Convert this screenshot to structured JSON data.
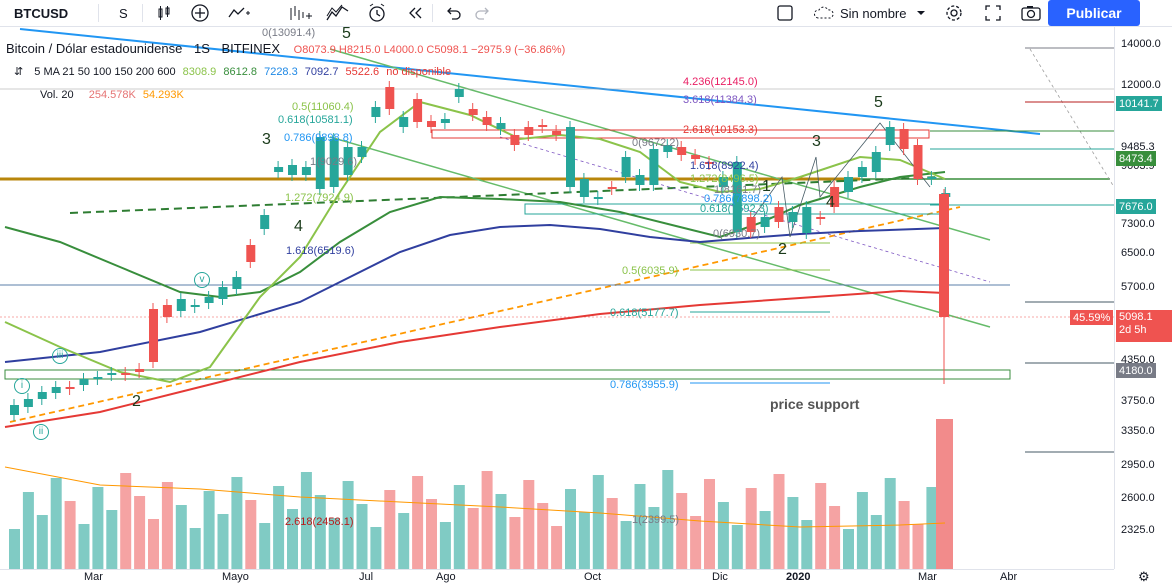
{
  "toolbar": {
    "symbol": "BTCUSD",
    "interval": "S",
    "layout_name": "Sin nombre",
    "publish_label": "Publicar"
  },
  "legend": {
    "title": "Bitcoin / Dólar estadounidense",
    "interval": "1S",
    "exchange": "BITFINEX",
    "ohlc": {
      "o": "O8073.9",
      "h": "H8215.0",
      "l": "L4000.0",
      "c": "C5098.1",
      "change": "−2975.9 (−36.86%)"
    },
    "ma_label": "5 MA 21 50 100 150 200 600",
    "ma_values": [
      {
        "value": "8308.9",
        "color": "#8bc34a"
      },
      {
        "value": "8612.8",
        "color": "#388e3c"
      },
      {
        "value": "7228.3",
        "color": "#1e88e5"
      },
      {
        "value": "7092.7",
        "color": "#303f9f"
      },
      {
        "value": "5522.6",
        "color": "#e53935"
      },
      {
        "value": "no disponible",
        "color": "#e53935"
      }
    ],
    "vol_label": "Vol. 20",
    "vol_values": [
      {
        "value": "254.578K",
        "color": "#e57373"
      },
      {
        "value": "54.293K",
        "color": "#ff9800"
      }
    ]
  },
  "price_axis": {
    "ticks": [
      "14000.0",
      "12000.0",
      "9485.3",
      "9003.9",
      "7300.0",
      "6500.0",
      "5700.0",
      "4350.0",
      "3750.0",
      "3350.0",
      "2950.0",
      "2600.0",
      "2325.0"
    ],
    "badges": [
      {
        "label": "10141.7",
        "color": "#26a69a"
      },
      {
        "label": "8473.4",
        "color": "#388e3c"
      },
      {
        "label": "7676.0",
        "color": "#26a69a"
      },
      {
        "label": "5098.1",
        "color": "#ef5350"
      },
      {
        "label": "4180.0",
        "color": "#787b86"
      }
    ],
    "percent_badge": "45.59%",
    "countdown": "2d 5h"
  },
  "time_axis": {
    "labels": [
      "Mar",
      "Mayo",
      "Jul",
      "Ago",
      "Oct",
      "Dic",
      "2020",
      "Mar",
      "Abr"
    ]
  },
  "annotations": {
    "fibs": [
      "0(13091.4)",
      "0.5(11060.4)",
      "0.618(10581.1)",
      "0.786(9898.8)",
      "1(9029.6)",
      "1.272(7924.9)",
      "1.618(6519.6)",
      "4.236(12145.0)",
      "3.618(11384.3)",
      "2.618(10153.3)",
      "0(9672.2)",
      "1.618(8922.4)",
      "1.272(8496.5)",
      "1(8161.7)",
      "0.786(7898.2)",
      "0.618(7692.3)",
      "0(6930.7)",
      "0.5(6035.9)",
      "0.618(5177.7)",
      "0.786(3955.9)",
      "2.618(2458.1)",
      "1(2399.5)"
    ],
    "price_support": "price support",
    "waves": [
      "5",
      "3",
      "4",
      "3",
      "4",
      "1",
      "2",
      "5",
      "2"
    ],
    "circle_labels": [
      "i",
      "ii",
      "iii",
      "v"
    ]
  },
  "chart_data": {
    "type": "candlestick",
    "title": "Bitcoin / Dólar estadounidense",
    "interval": "1S",
    "price_range": [
      2325,
      14000
    ],
    "x_labels": [
      "Mar",
      "Mayo",
      "Jul",
      "Ago",
      "Oct",
      "Dic",
      "2020",
      "Mar",
      "Abr"
    ],
    "last_close": 5098.1,
    "last_low": 4000.0
  },
  "colors": {
    "up": "#26a69a",
    "down": "#ef5350",
    "accent": "#2962ff"
  }
}
